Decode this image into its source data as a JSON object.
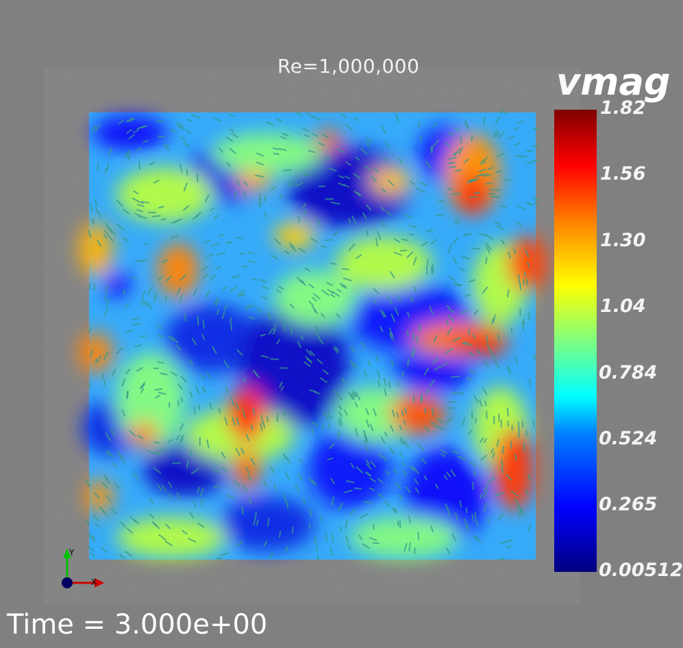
{
  "title": "Re=1,000,000",
  "colorbar": {
    "label": "vmag",
    "ticks": [
      "1.82",
      "1.56",
      "1.30",
      "1.04",
      "0.784",
      "0.524",
      "0.265",
      "0.00512"
    ],
    "colors": [
      "#00007f",
      "#0000ff",
      "#0080ff",
      "#00ffff",
      "#7fff7f",
      "#ffff00",
      "#ff7f00",
      "#ff0000",
      "#7f0000"
    ]
  },
  "axes": {
    "x_label": "X",
    "y_label": "Y"
  },
  "time_label": "Time = 3.000e+00",
  "colors": {
    "background": "#808080",
    "glyph": "#3a9a8a"
  }
}
